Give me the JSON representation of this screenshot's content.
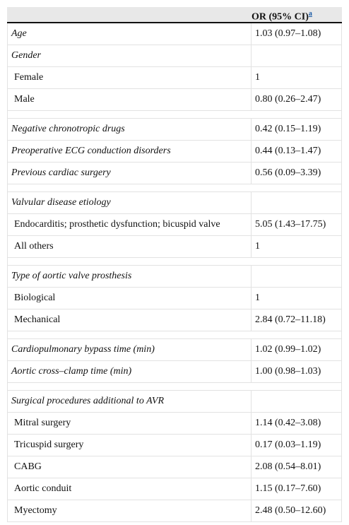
{
  "header": {
    "column": "OR (95% CI)",
    "footnote": "a"
  },
  "groups": [
    {
      "variables": [
        {
          "label": "Age",
          "or": "1.03 (0.97–1.08)"
        },
        {
          "label": "Gender",
          "levels": [
            {
              "label": "Female",
              "or": "1"
            },
            {
              "label": "Male",
              "or": "0.80 (0.26–2.47)"
            }
          ]
        }
      ]
    },
    {
      "variables": [
        {
          "label": "Negative chronotropic drugs",
          "or": "0.42 (0.15–1.19)"
        },
        {
          "label": "Preoperative ECG conduction disorders",
          "or": "0.44 (0.13–1.47)"
        },
        {
          "label": "Previous cardiac surgery",
          "or": "0.56 (0.09–3.39)"
        }
      ]
    },
    {
      "variables": [
        {
          "label": "Valvular disease etiology",
          "levels": [
            {
              "label": "Endocarditis; prosthetic dysfunction; bicuspid valve",
              "or": "5.05 (1.43–17.75)"
            },
            {
              "label": "All others",
              "or": "1"
            }
          ]
        }
      ]
    },
    {
      "variables": [
        {
          "label": "Type of aortic valve prosthesis",
          "levels": [
            {
              "label": "Biological",
              "or": "1"
            },
            {
              "label": "Mechanical",
              "or": "2.84 (0.72–11.18)"
            }
          ]
        }
      ]
    },
    {
      "variables": [
        {
          "label": "Cardiopulmonary bypass time (min)",
          "or": "1.02 (0.99–1.02)"
        },
        {
          "label": "Aortic cross–clamp time (min)",
          "or": "1.00 (0.98–1.03)"
        }
      ]
    },
    {
      "variables": [
        {
          "label": "Surgical procedures additional to AVR",
          "levels": [
            {
              "label": "Mitral surgery",
              "or": "1.14 (0.42–3.08)"
            },
            {
              "label": "Tricuspid surgery",
              "or": "0.17 (0.03–1.19)"
            },
            {
              "label": "CABG",
              "or": "2.08 (0.54–8.01)"
            },
            {
              "label": "Aortic conduit",
              "or": "1.15 (0.17–7.60)"
            },
            {
              "label": "Myectomy",
              "or": "2.48 (0.50–12.60)"
            }
          ]
        }
      ]
    }
  ]
}
